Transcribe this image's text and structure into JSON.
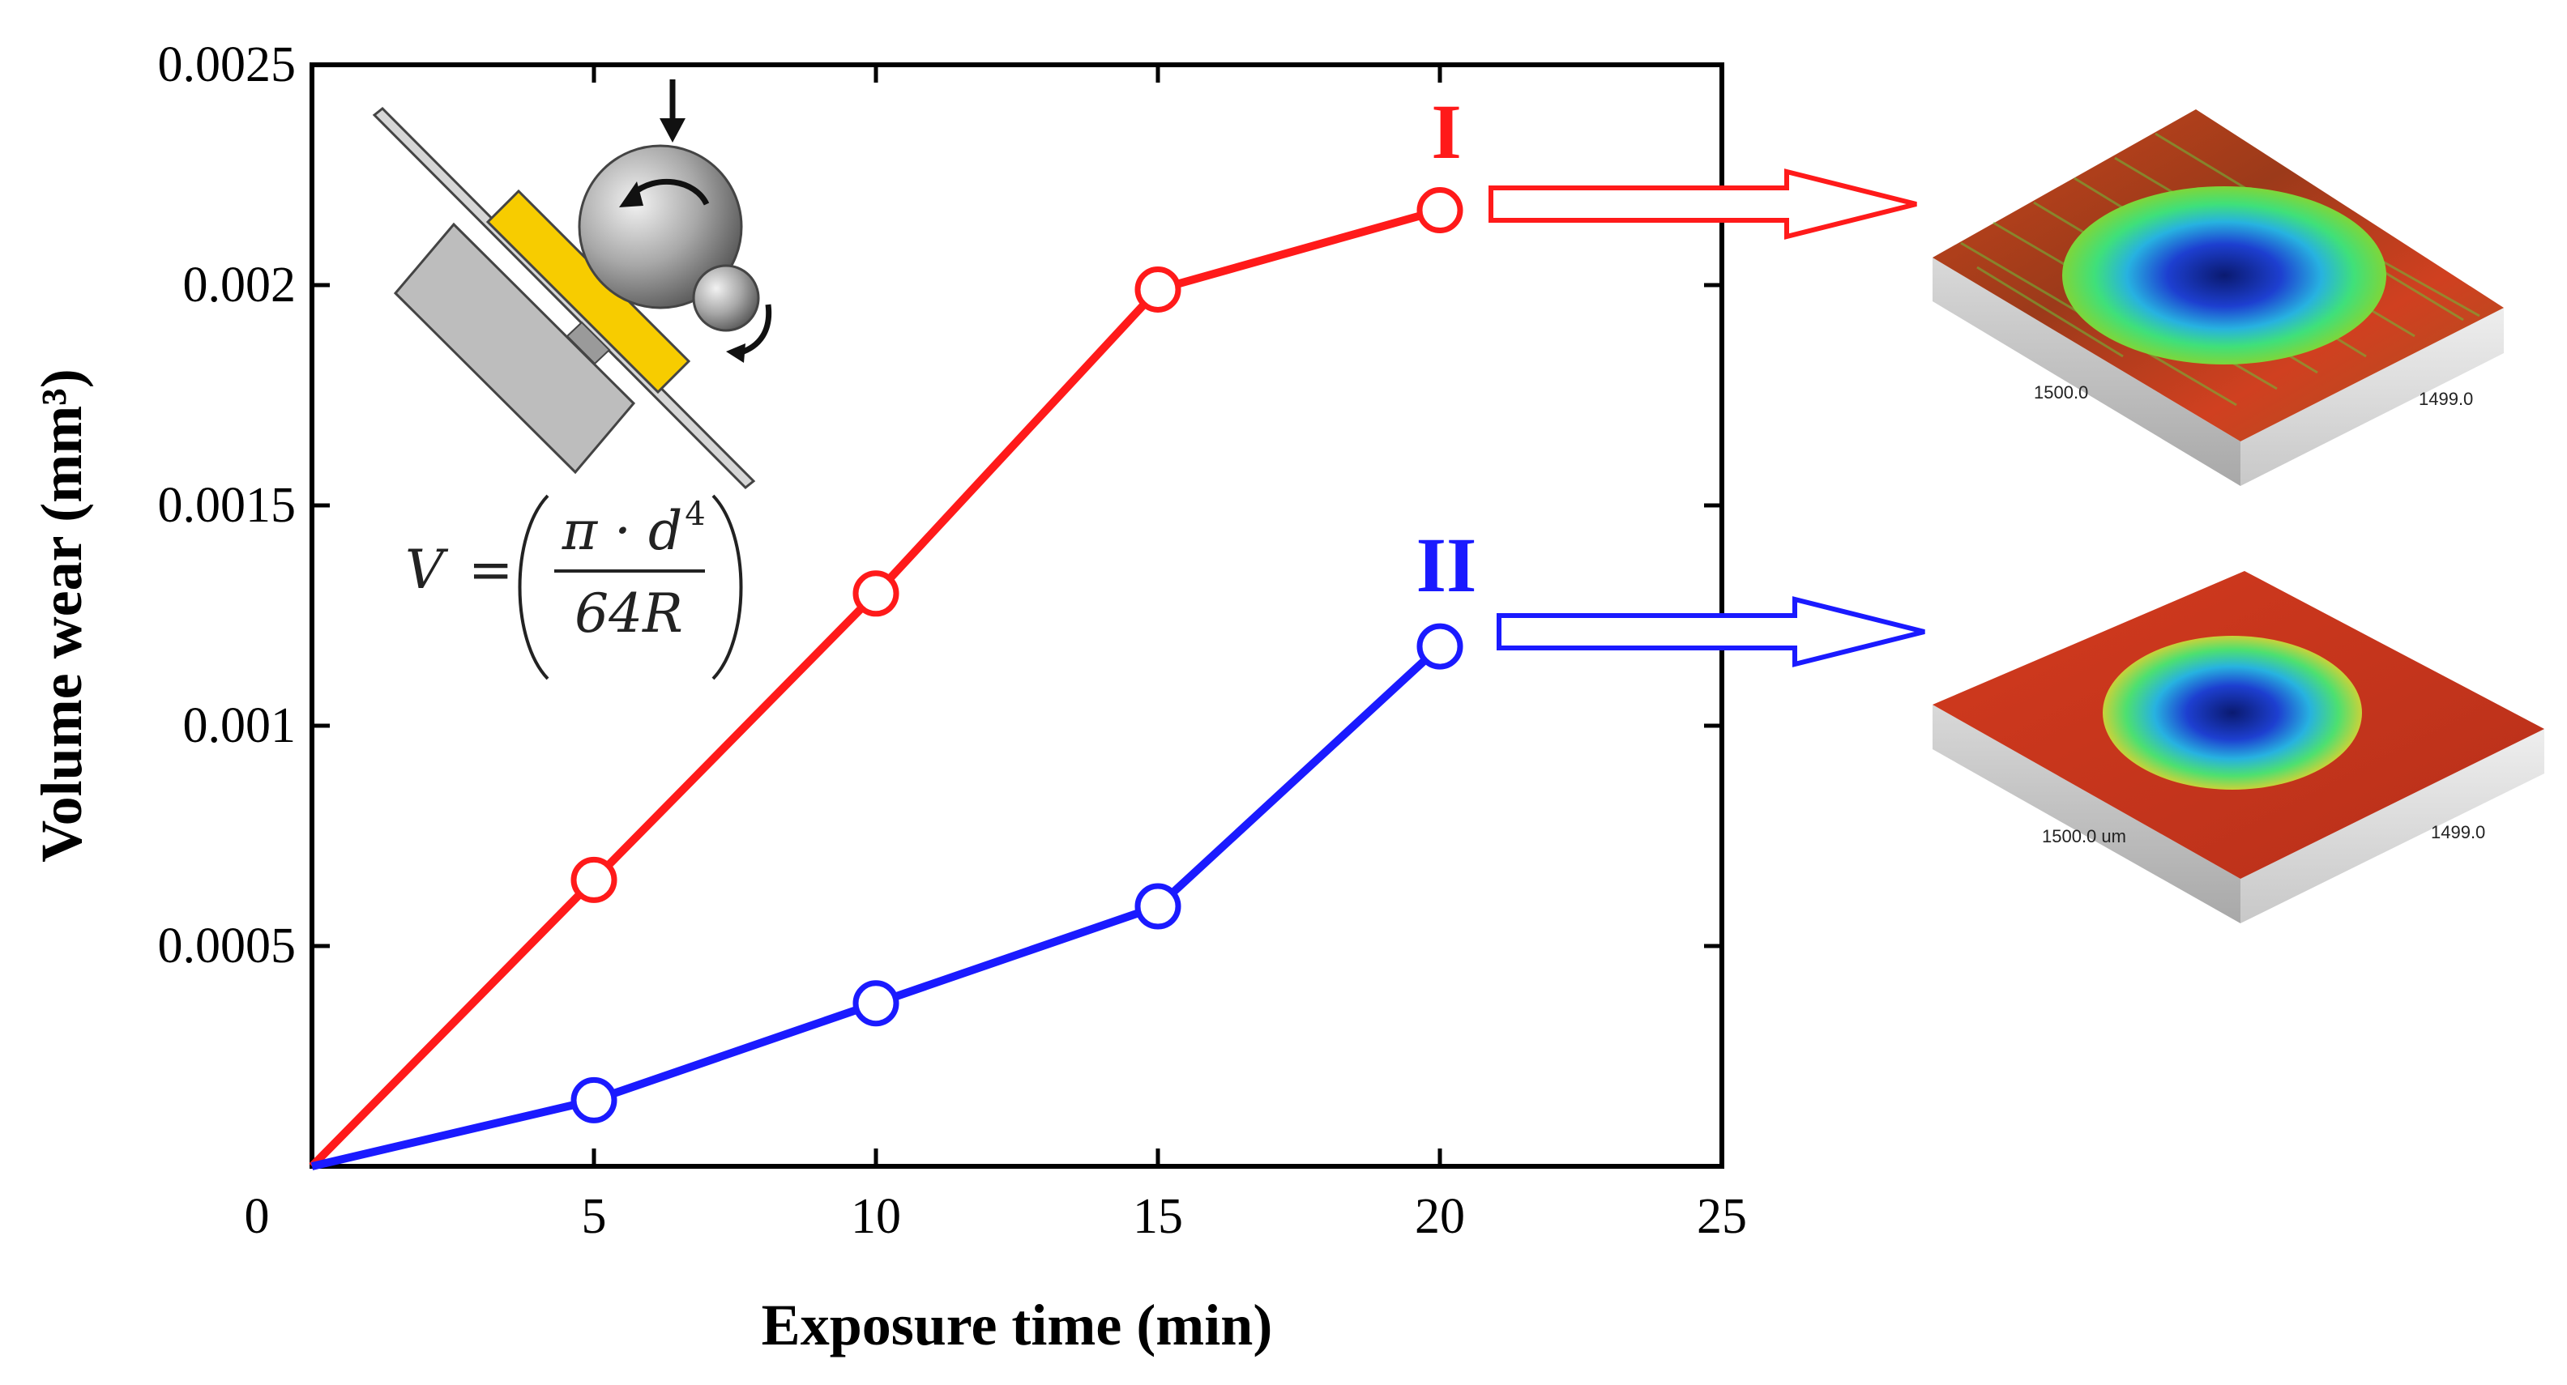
{
  "chart_data": {
    "type": "line",
    "xlabel": "Exposure time (min)",
    "ylabel": "Volume wear  (mm³)",
    "x_ticks": [
      "0",
      "5",
      "10",
      "15",
      "20",
      "25"
    ],
    "y_ticks": [
      "0.0005",
      "0.001",
      "0.0015",
      "0.002",
      "0.0025"
    ],
    "xlim": [
      0,
      25
    ],
    "ylim": [
      0,
      0.0025
    ],
    "x": [
      0,
      5,
      10,
      15,
      20
    ],
    "series": [
      {
        "name": "I",
        "color": "#ff1a1a",
        "values": [
          0,
          0.00065,
          0.0013,
          0.00199,
          0.00217
        ]
      },
      {
        "name": "II",
        "color": "#1a1aff",
        "values": [
          0,
          0.00015,
          0.00037,
          0.00059,
          0.00118
        ]
      }
    ],
    "grid": false,
    "formula": {
      "lhs": "V",
      "equals": "=",
      "numerator": "π · d",
      "exponent": "4",
      "denominator": "64R"
    },
    "scan_images": [
      {
        "series": "I",
        "x_dim_label": "1500.0",
        "y_dim_label": "1499.0"
      },
      {
        "series": "II",
        "x_dim_label": "1500.0 um",
        "y_dim_label": "1499.0"
      }
    ]
  }
}
